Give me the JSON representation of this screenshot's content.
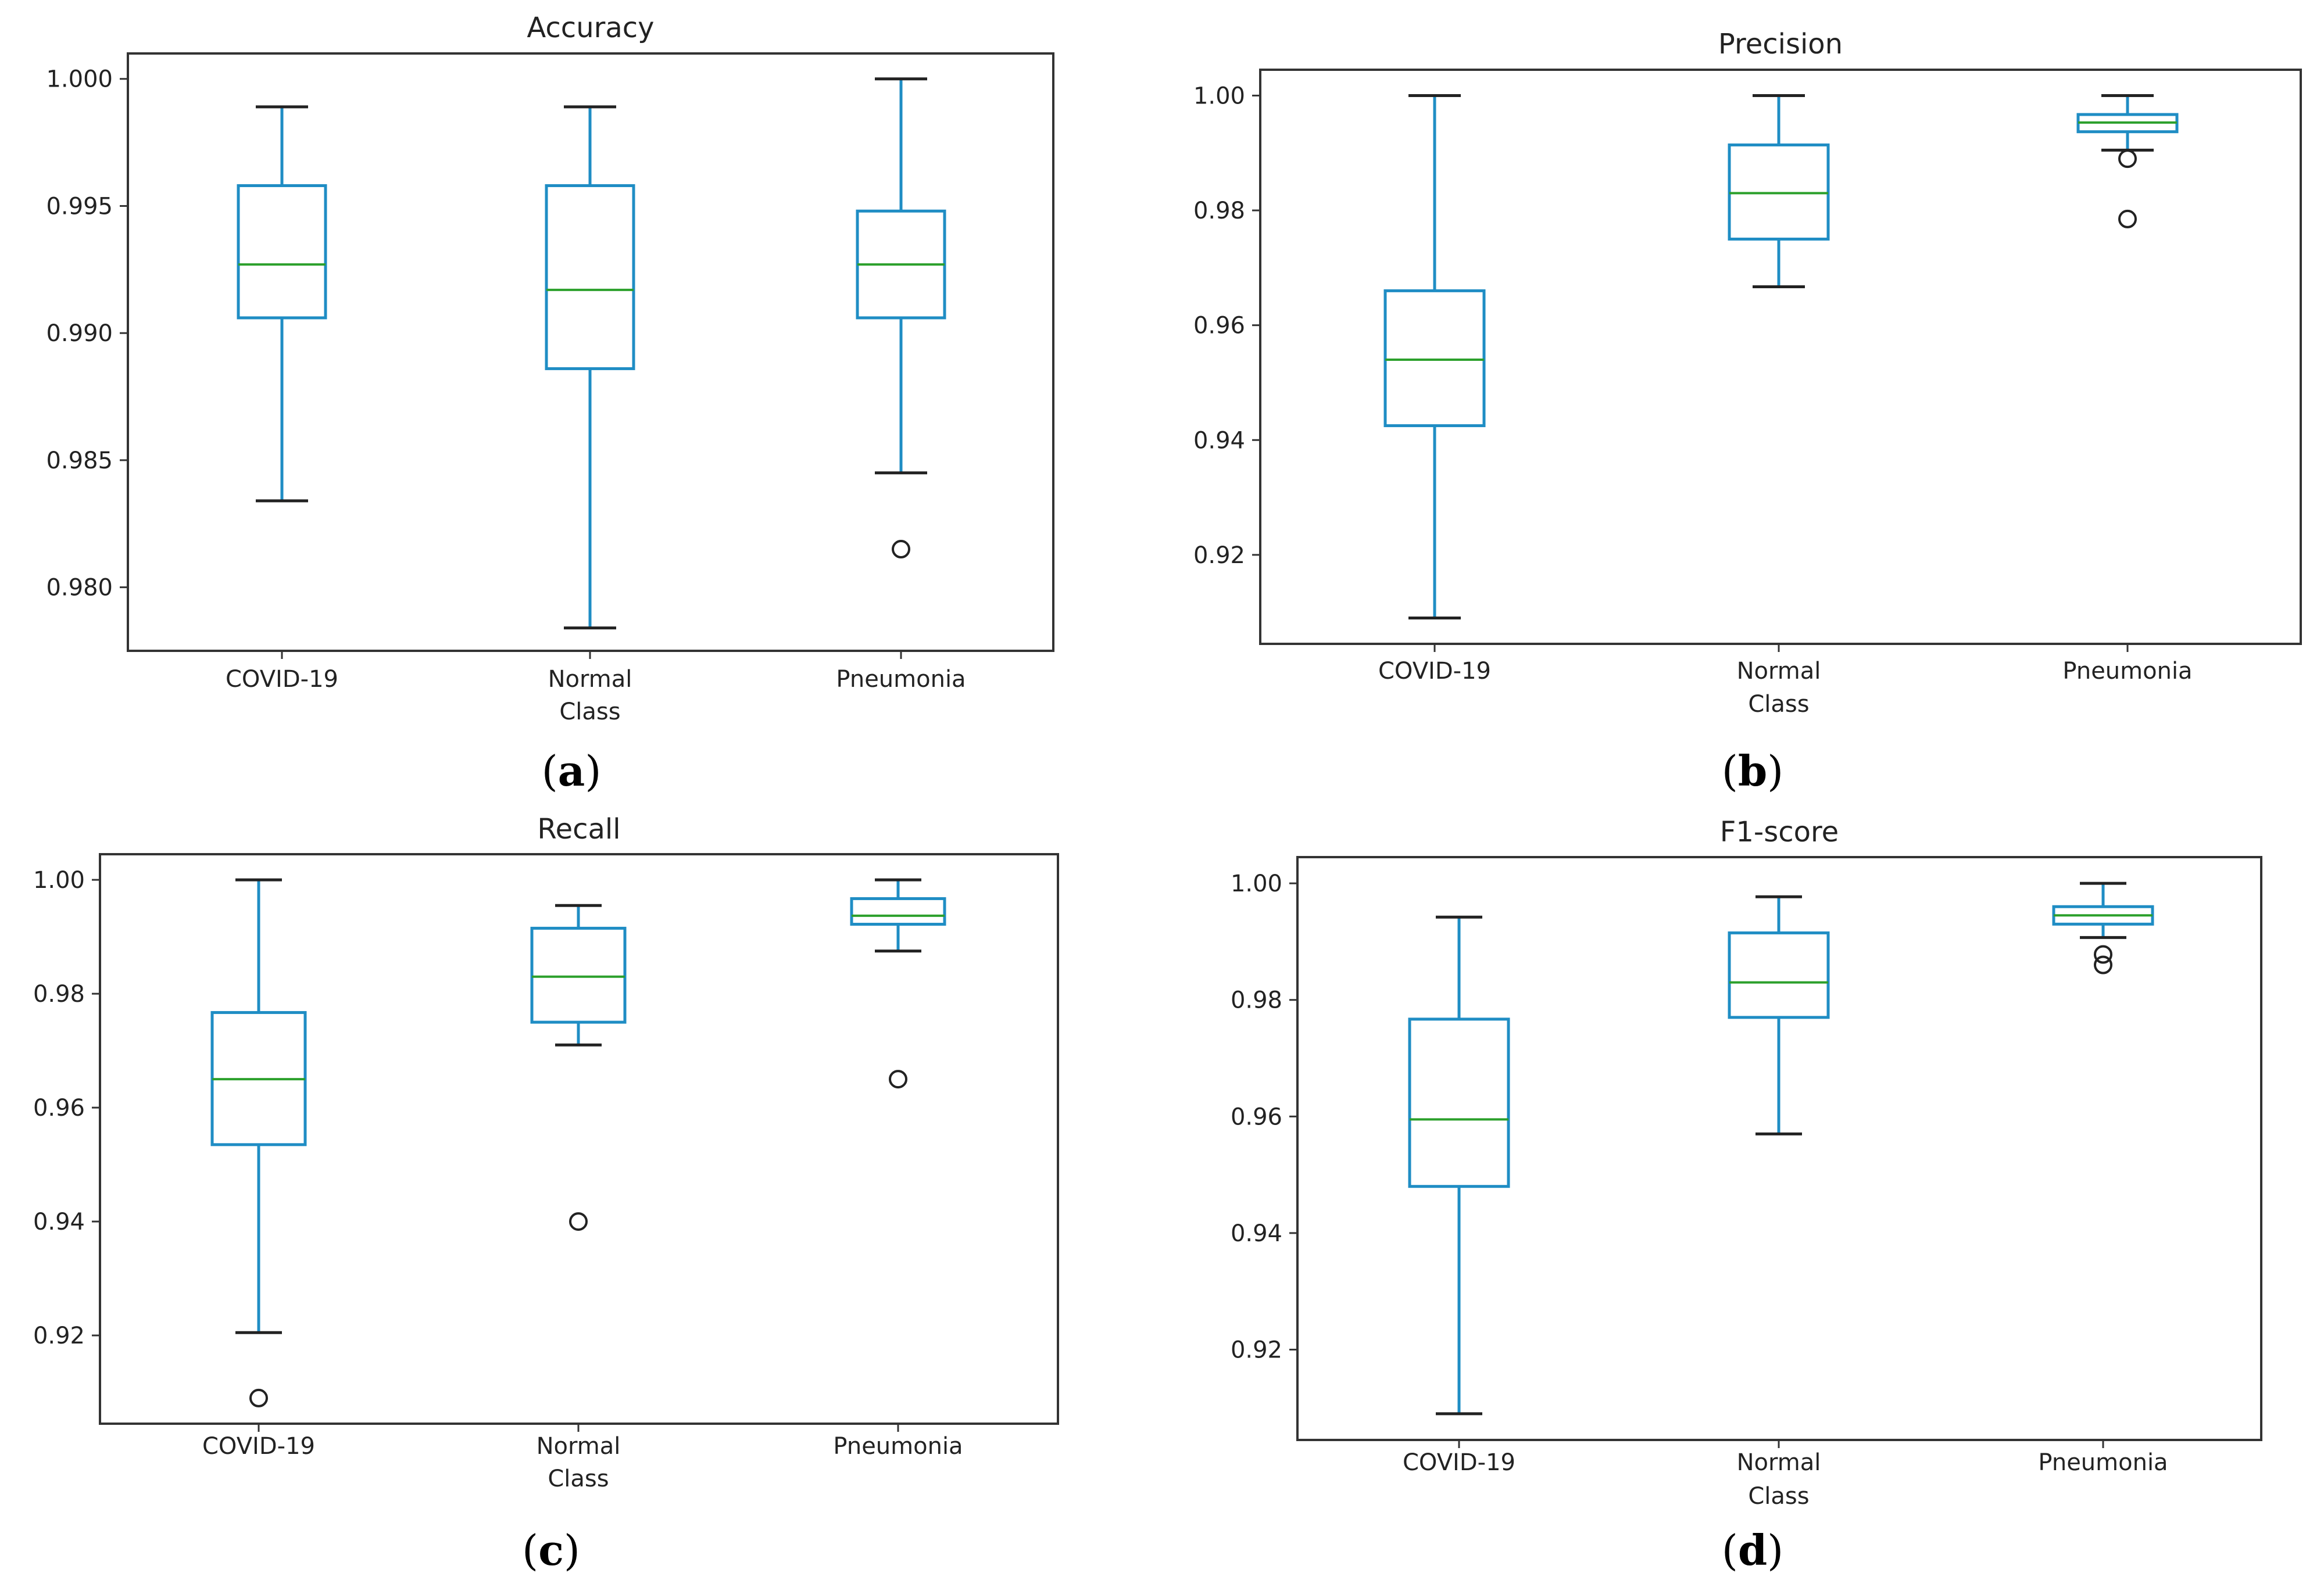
{
  "chart_data": [
    {
      "type": "box",
      "panel": "a",
      "title": "Accuracy",
      "xlabel": "Class",
      "ylabel": "",
      "categories": [
        "COVID-19",
        "Normal",
        "Pneumonia"
      ],
      "ylim": [
        0.9775,
        1.001
      ],
      "yticks": [
        0.98,
        0.985,
        0.99,
        0.995,
        1.0
      ],
      "ytick_labels": [
        "0.980",
        "0.985",
        "0.990",
        "0.995",
        "1.000"
      ],
      "boxes": [
        {
          "whislo": 0.9834,
          "q1": 0.9906,
          "med": 0.9927,
          "q3": 0.9958,
          "whishi": 0.9989,
          "fliers": []
        },
        {
          "whislo": 0.9784,
          "q1": 0.9886,
          "med": 0.9917,
          "q3": 0.9958,
          "whishi": 0.9989,
          "fliers": []
        },
        {
          "whislo": 0.9845,
          "q1": 0.9906,
          "med": 0.9927,
          "q3": 0.9948,
          "whishi": 1.0,
          "fliers": [
            0.9815
          ]
        }
      ]
    },
    {
      "type": "box",
      "panel": "b",
      "title": "Precision",
      "xlabel": "Class",
      "ylabel": "",
      "categories": [
        "COVID-19",
        "Normal",
        "Pneumonia"
      ],
      "ylim": [
        0.9045,
        1.0045
      ],
      "yticks": [
        0.92,
        0.94,
        0.96,
        0.98,
        1.0
      ],
      "ytick_labels": [
        "0.92",
        "0.94",
        "0.96",
        "0.98",
        "1.00"
      ],
      "boxes": [
        {
          "whislo": 0.909,
          "q1": 0.9425,
          "med": 0.954,
          "q3": 0.966,
          "whishi": 1.0,
          "fliers": []
        },
        {
          "whislo": 0.9667,
          "q1": 0.975,
          "med": 0.983,
          "q3": 0.9914,
          "whishi": 1.0,
          "fliers": []
        },
        {
          "whislo": 0.9905,
          "q1": 0.9937,
          "med": 0.9953,
          "q3": 0.9967,
          "whishi": 1.0,
          "fliers": [
            0.989,
            0.9785
          ]
        }
      ]
    },
    {
      "type": "box",
      "panel": "c",
      "title": "Recall",
      "xlabel": "Class",
      "ylabel": "",
      "categories": [
        "COVID-19",
        "Normal",
        "Pneumonia"
      ],
      "ylim": [
        0.9045,
        1.0045
      ],
      "yticks": [
        0.92,
        0.94,
        0.96,
        0.98,
        1.0
      ],
      "ytick_labels": [
        "0.92",
        "0.94",
        "0.96",
        "0.98",
        "1.00"
      ],
      "boxes": [
        {
          "whislo": 0.9205,
          "q1": 0.9535,
          "med": 0.965,
          "q3": 0.9767,
          "whishi": 1.0,
          "fliers": [
            0.909
          ]
        },
        {
          "whislo": 0.971,
          "q1": 0.975,
          "med": 0.983,
          "q3": 0.9915,
          "whishi": 0.9955,
          "fliers": [
            0.94
          ]
        },
        {
          "whislo": 0.9875,
          "q1": 0.9922,
          "med": 0.9937,
          "q3": 0.9967,
          "whishi": 1.0,
          "fliers": [
            0.965
          ]
        }
      ]
    },
    {
      "type": "box",
      "panel": "d",
      "title": "F1-score",
      "xlabel": "Class",
      "ylabel": "",
      "categories": [
        "COVID-19",
        "Normal",
        "Pneumonia"
      ],
      "ylim": [
        0.9045,
        1.0045
      ],
      "yticks": [
        0.92,
        0.94,
        0.96,
        0.98,
        1.0
      ],
      "ytick_labels": [
        "0.92",
        "0.94",
        "0.96",
        "0.98",
        "1.00"
      ],
      "boxes": [
        {
          "whislo": 0.909,
          "q1": 0.948,
          "med": 0.9595,
          "q3": 0.9767,
          "whishi": 0.9942,
          "fliers": []
        },
        {
          "whislo": 0.957,
          "q1": 0.977,
          "med": 0.983,
          "q3": 0.9915,
          "whishi": 0.9977,
          "fliers": []
        },
        {
          "whislo": 0.9907,
          "q1": 0.993,
          "med": 0.9945,
          "q3": 0.996,
          "whishi": 1.0,
          "fliers": [
            0.9878,
            0.986
          ]
        }
      ]
    }
  ],
  "panel_labels": [
    "a",
    "b",
    "c",
    "d"
  ]
}
